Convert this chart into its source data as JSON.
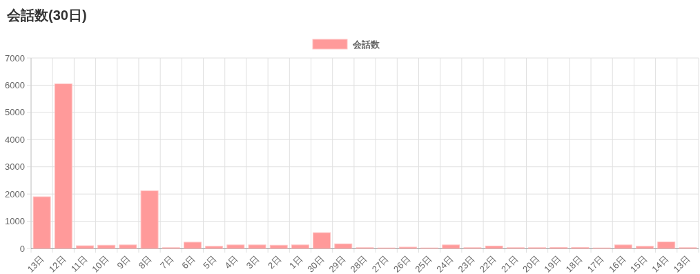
{
  "chart_data": {
    "type": "bar",
    "title": "会話数(30日)",
    "categories": [
      "13日",
      "12日",
      "11日",
      "10日",
      "9日",
      "8日",
      "7日",
      "6日",
      "5日",
      "4日",
      "3日",
      "2日",
      "1日",
      "30日",
      "29日",
      "28日",
      "27日",
      "26日",
      "25日",
      "24日",
      "23日",
      "22日",
      "21日",
      "20日",
      "19日",
      "18日",
      "17日",
      "16日",
      "15日",
      "14日",
      "13日"
    ],
    "series": [
      {
        "name": "会話数",
        "color": "#ff9a9a",
        "values": [
          1900,
          6050,
          100,
          120,
          130,
          2120,
          30,
          230,
          80,
          130,
          130,
          120,
          130,
          580,
          170,
          30,
          20,
          50,
          20,
          130,
          30,
          90,
          30,
          30,
          40,
          40,
          20,
          130,
          80,
          240,
          30
        ]
      }
    ],
    "ylim": [
      0,
      7000
    ],
    "yticks": [
      0,
      1000,
      2000,
      3000,
      4000,
      5000,
      6000,
      7000
    ],
    "grid": true,
    "legend": "top"
  }
}
